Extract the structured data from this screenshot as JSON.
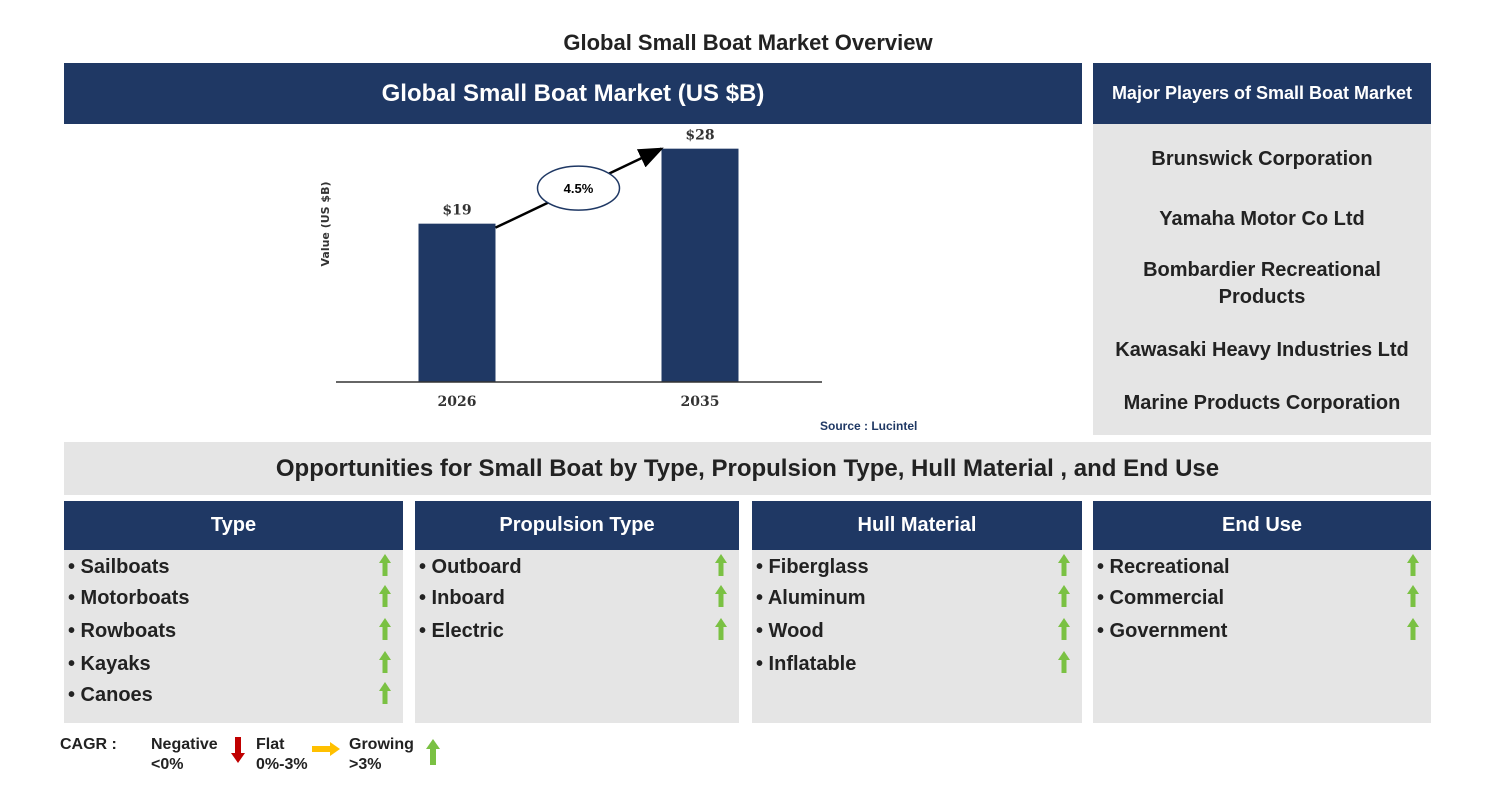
{
  "page_title": "Global Small Boat Market Overview",
  "chart_panel": {
    "title": "Global Small Boat Market (US $B)",
    "source": "Source : Lucintel"
  },
  "chart_data": {
    "type": "bar",
    "categories": [
      "2026",
      "2035"
    ],
    "values": [
      19,
      28
    ],
    "data_labels": [
      "$19",
      "$28"
    ],
    "ylabel": "Value (US $B)",
    "cagr_label": "4.5%",
    "ylim": [
      0,
      30
    ],
    "grid": false,
    "colors": {
      "bar": "#1f3864"
    }
  },
  "players": {
    "title": "Major Players of Small Boat Market",
    "items": [
      "Brunswick Corporation",
      "Yamaha Motor Co Ltd",
      "Bombardier Recreational Products",
      "Kawasaki Heavy Industries Ltd",
      "Marine Products Corporation"
    ]
  },
  "opportunities": {
    "title": "Opportunities for Small Boat by Type, Propulsion Type, Hull Material , and End Use",
    "segments": [
      {
        "title": "Type",
        "items": [
          "• Sailboats",
          "• Motorboats",
          "• Rowboats",
          "• Kayaks",
          "• Canoes"
        ],
        "trend": "growing"
      },
      {
        "title": "Propulsion Type",
        "items": [
          "• Outboard",
          "• Inboard",
          "• Electric"
        ],
        "trend": "growing"
      },
      {
        "title": "Hull Material",
        "items": [
          "• Fiberglass",
          "• Aluminum",
          "• Wood",
          "• Inflatable"
        ],
        "trend": "growing"
      },
      {
        "title": "End Use",
        "items": [
          "• Recreational",
          "• Commercial",
          "• Government"
        ],
        "trend": "growing"
      }
    ]
  },
  "legend": {
    "label": "CAGR  :",
    "negative": {
      "name": "Negative",
      "range": "<0%",
      "color": "#c00000",
      "icon": "down-arrow-icon"
    },
    "flat": {
      "name": "Flat",
      "range": "0%-3%",
      "color": "#ffc000",
      "icon": "right-arrow-icon"
    },
    "growing": {
      "name": "Growing",
      "range": ">3%",
      "color": "#7ac143",
      "icon": "up-arrow-icon"
    }
  }
}
